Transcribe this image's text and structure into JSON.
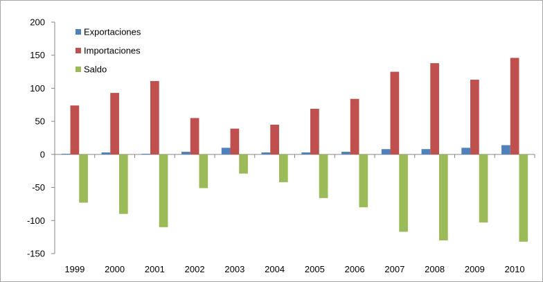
{
  "chart_data": {
    "type": "bar",
    "categories": [
      "1999",
      "2000",
      "2001",
      "2002",
      "2003",
      "2004",
      "2005",
      "2006",
      "2007",
      "2008",
      "2009",
      "2010"
    ],
    "series": [
      {
        "name": "Exportaciones",
        "color": "#4f81bd",
        "values": [
          1,
          3,
          1,
          4,
          10,
          3,
          3,
          4,
          8,
          8,
          10,
          14
        ]
      },
      {
        "name": "Importaciones",
        "color": "#c0504d",
        "values": [
          74,
          93,
          111,
          55,
          39,
          45,
          69,
          84,
          125,
          138,
          113,
          146
        ]
      },
      {
        "name": "Saldo",
        "color": "#9bbb59",
        "values": [
          -73,
          -90,
          -110,
          -51,
          -29,
          -42,
          -66,
          -80,
          -117,
          -130,
          -103,
          -132
        ]
      }
    ],
    "ylim": [
      -150,
      200
    ],
    "yticks": [
      200,
      150,
      100,
      50,
      0,
      -50,
      -100,
      -150
    ],
    "legend_position": "top-left",
    "grid": false
  }
}
